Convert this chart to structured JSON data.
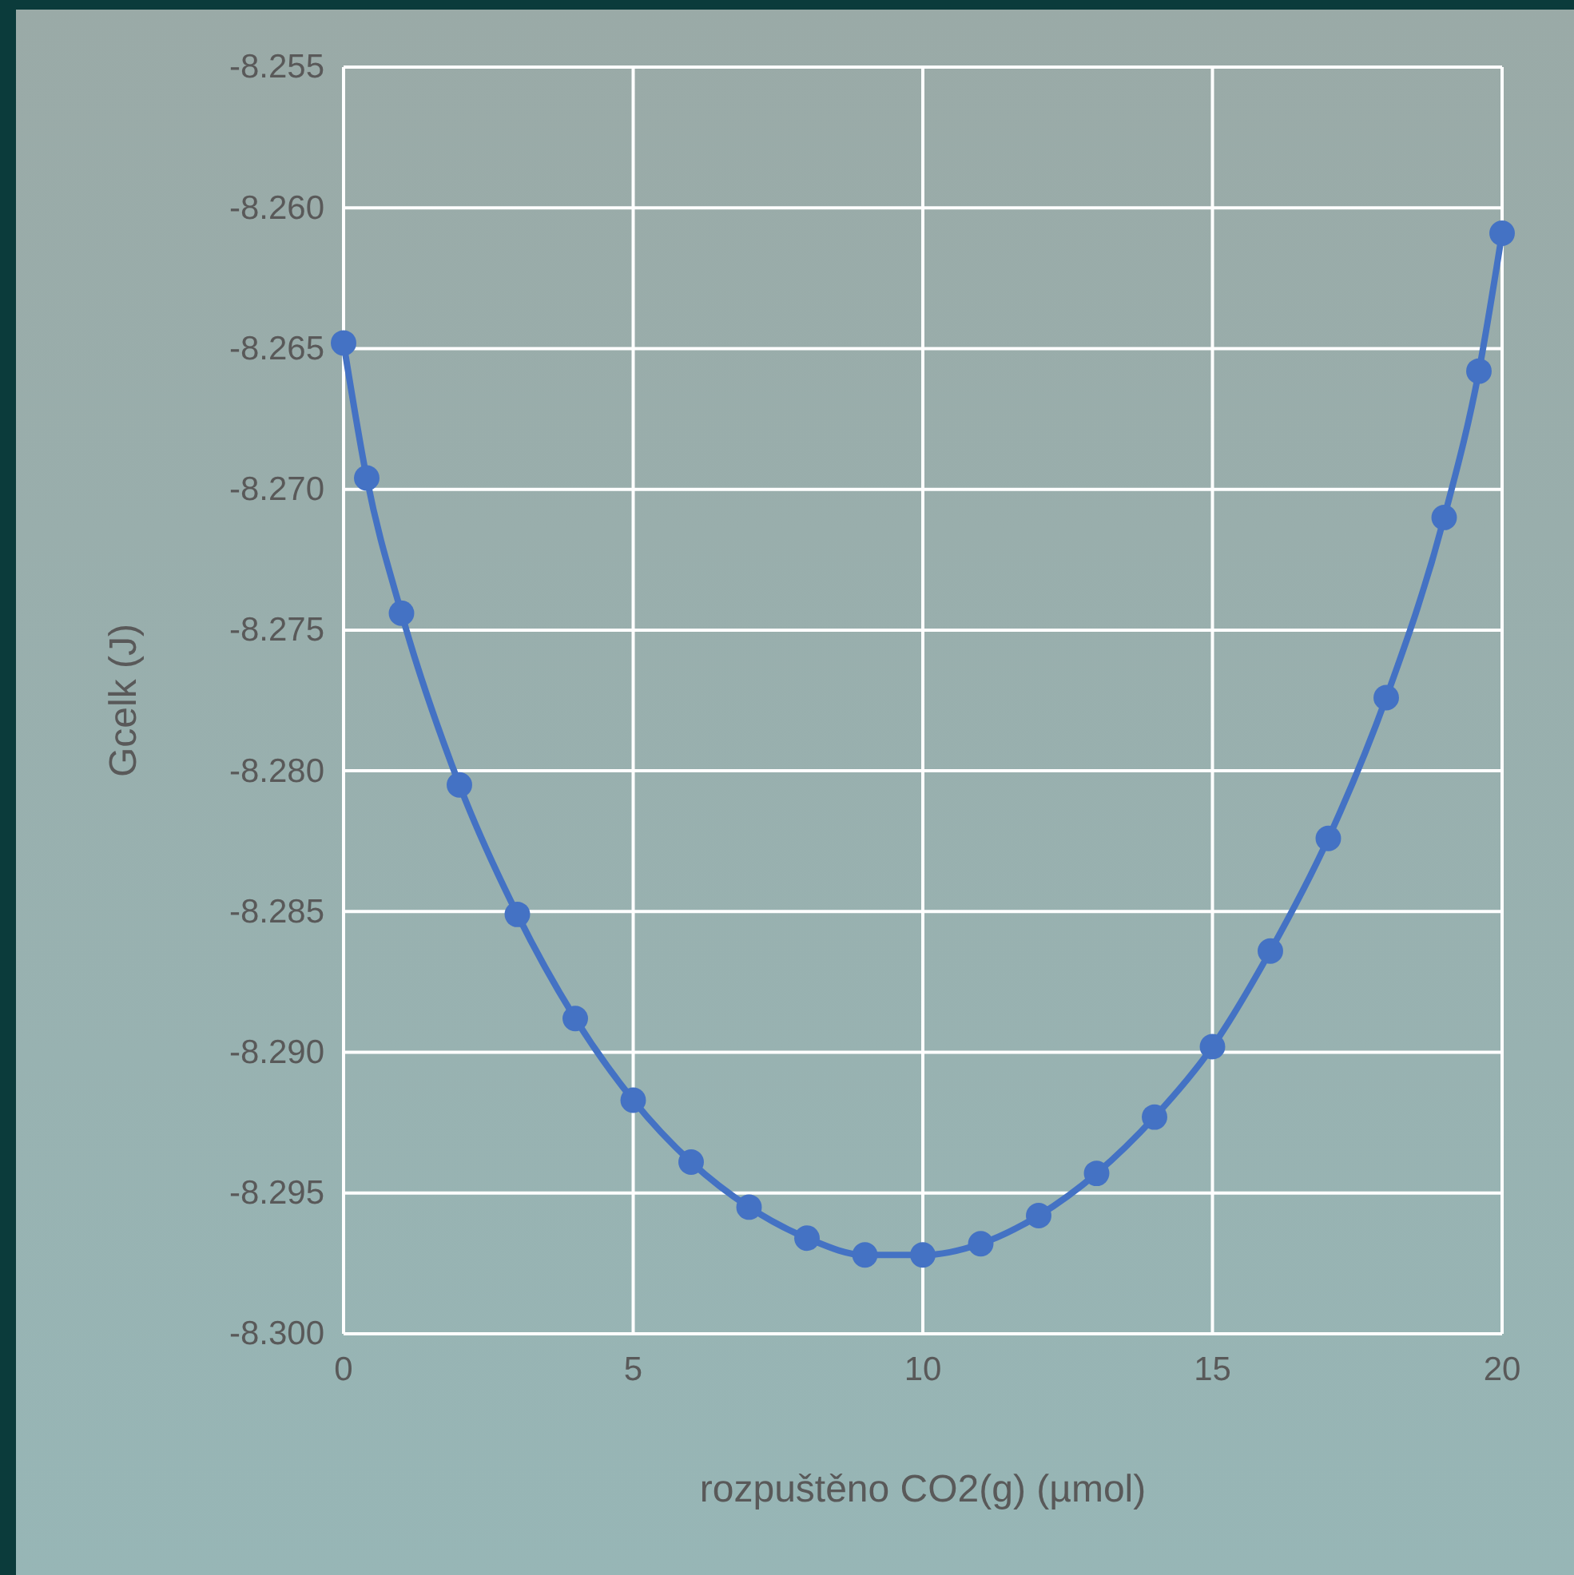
{
  "chart_data": {
    "type": "line",
    "xlabel": "rozpuštěno CO2(g) (µmol)",
    "ylabel": "Gcelk (J)",
    "x": [
      0,
      0.4,
      1,
      2,
      3,
      4,
      5,
      6,
      7,
      8,
      9,
      10,
      11,
      12,
      13,
      14,
      15,
      16,
      17,
      18,
      19,
      19.6,
      20
    ],
    "series": [
      {
        "color": "#4472c4",
        "values": [
          -8.2648,
          -8.2696,
          -8.2744,
          -8.2805,
          -8.2851,
          -8.2888,
          -8.2917,
          -8.2939,
          -8.2955,
          -8.2966,
          -8.2972,
          -8.2972,
          -8.2968,
          -8.2958,
          -8.2943,
          -8.2923,
          -8.2898,
          -8.2864,
          -8.2824,
          -8.2774,
          -8.271,
          -8.2658,
          -8.2609
        ]
      }
    ],
    "xlim": [
      0,
      20
    ],
    "xticks": [
      0,
      5,
      10,
      15,
      20
    ],
    "ylim": [
      -8.3,
      -8.255
    ],
    "yticks": [
      {
        "value": -8.3,
        "label": "-8.300"
      },
      {
        "value": -8.295,
        "label": "-8.295"
      },
      {
        "value": -8.29,
        "label": "-8.290"
      },
      {
        "value": -8.285,
        "label": "-8.285"
      },
      {
        "value": -8.28,
        "label": "-8.280"
      },
      {
        "value": -8.275,
        "label": "-8.275"
      },
      {
        "value": -8.27,
        "label": "-8.270"
      },
      {
        "value": -8.265,
        "label": "-8.265"
      },
      {
        "value": -8.26,
        "label": "-8.260"
      },
      {
        "value": -8.255,
        "label": "-8.255"
      }
    ],
    "grid": true,
    "marker": "circle",
    "line_style": "solid"
  }
}
